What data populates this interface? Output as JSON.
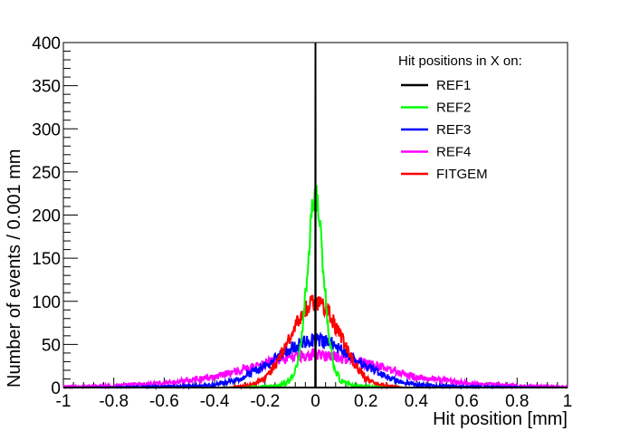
{
  "chart_data": {
    "type": "line",
    "xlabel": "Hit position [mm]",
    "ylabel": "Number of events / 0.001 mm",
    "xlim": [
      -1,
      1
    ],
    "ylim": [
      0,
      400
    ],
    "x_ticks": [
      "-1",
      "-0.8",
      "-0.6",
      "-0.4",
      "-0.2",
      "0",
      "0.2",
      "0.4",
      "0.6",
      "0.8",
      "1"
    ],
    "y_ticks": [
      "0",
      "50",
      "100",
      "150",
      "200",
      "250",
      "300",
      "350",
      "400"
    ],
    "grid": false,
    "legend": {
      "title": "Hit positions in X on:",
      "position": "top-right"
    },
    "series": [
      {
        "name": "REF1",
        "color": "#000000",
        "x": [
          -1,
          -0.004,
          -0.003,
          -0.002,
          -0.001,
          0,
          0.001,
          0.002,
          0.003,
          1
        ],
        "y": [
          0,
          0,
          0,
          0,
          0,
          400,
          0,
          0,
          0,
          0
        ]
      },
      {
        "name": "REF2",
        "color": "#00ff00",
        "x": [
          -1,
          -0.3,
          -0.15,
          -0.1,
          -0.07,
          -0.05,
          -0.03,
          -0.015,
          0,
          0.015,
          0.03,
          0.05,
          0.07,
          0.1,
          0.15,
          0.3,
          1
        ],
        "y": [
          0,
          0,
          2,
          8,
          25,
          70,
          140,
          200,
          235,
          200,
          140,
          70,
          25,
          8,
          2,
          0,
          0
        ]
      },
      {
        "name": "REF3",
        "color": "#0000ff",
        "x": [
          -1,
          -0.6,
          -0.4,
          -0.3,
          -0.2,
          -0.1,
          -0.05,
          0,
          0.05,
          0.1,
          0.2,
          0.3,
          0.4,
          0.6,
          1
        ],
        "y": [
          0,
          1,
          3,
          10,
          25,
          45,
          53,
          55,
          53,
          45,
          25,
          10,
          3,
          1,
          0
        ]
      },
      {
        "name": "REF4",
        "color": "#ff00ff",
        "x": [
          -1,
          -0.8,
          -0.6,
          -0.4,
          -0.3,
          -0.2,
          -0.1,
          0,
          0.1,
          0.2,
          0.3,
          0.4,
          0.6,
          0.8,
          1
        ],
        "y": [
          1,
          2,
          5,
          12,
          20,
          28,
          35,
          38,
          35,
          28,
          20,
          12,
          5,
          2,
          1
        ]
      },
      {
        "name": "FITGEM",
        "color": "#ff0000",
        "x": [
          -1,
          -0.35,
          -0.25,
          -0.2,
          -0.15,
          -0.1,
          -0.05,
          0,
          0.05,
          0.1,
          0.15,
          0.2,
          0.25,
          0.35,
          1
        ],
        "y": [
          0,
          0,
          3,
          10,
          30,
          60,
          88,
          100,
          88,
          60,
          30,
          10,
          3,
          0,
          0
        ]
      }
    ]
  }
}
